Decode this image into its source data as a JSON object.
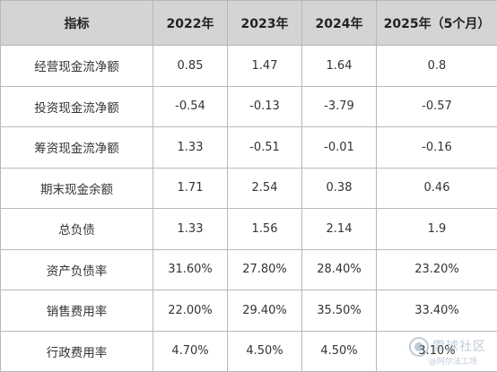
{
  "table": {
    "headers": [
      "指标",
      "2022年",
      "2023年",
      "2024年",
      "2025年（5个月）"
    ],
    "rows": [
      {
        "label": "经营现金流净额",
        "values": [
          "0.85",
          "1.47",
          "1.64",
          "0.8"
        ]
      },
      {
        "label": "投资现金流净额",
        "values": [
          "-0.54",
          "-0.13",
          "-3.79",
          "-0.57"
        ]
      },
      {
        "label": "筹资现金流净额",
        "values": [
          "1.33",
          "-0.51",
          "-0.01",
          "-0.16"
        ]
      },
      {
        "label": "期末现金余额",
        "values": [
          "1.71",
          "2.54",
          "0.38",
          "0.46"
        ]
      },
      {
        "label": "总负债",
        "values": [
          "1.33",
          "1.56",
          "2.14",
          "1.9"
        ]
      },
      {
        "label": "资产负债率",
        "values": [
          "31.60%",
          "27.80%",
          "28.40%",
          "23.20%"
        ]
      },
      {
        "label": "销售费用率",
        "values": [
          "22.00%",
          "29.40%",
          "35.50%",
          "33.40%"
        ]
      },
      {
        "label": "行政费用率",
        "values": [
          "4.70%",
          "4.50%",
          "4.50%",
          "3.10%"
        ]
      }
    ]
  },
  "watermark": {
    "name": "雪球社区",
    "handle": "@阿尔法工场"
  },
  "colors": {
    "header_bg": "#d4d4d4",
    "border": "#b8b8b8",
    "text": "#333333"
  }
}
